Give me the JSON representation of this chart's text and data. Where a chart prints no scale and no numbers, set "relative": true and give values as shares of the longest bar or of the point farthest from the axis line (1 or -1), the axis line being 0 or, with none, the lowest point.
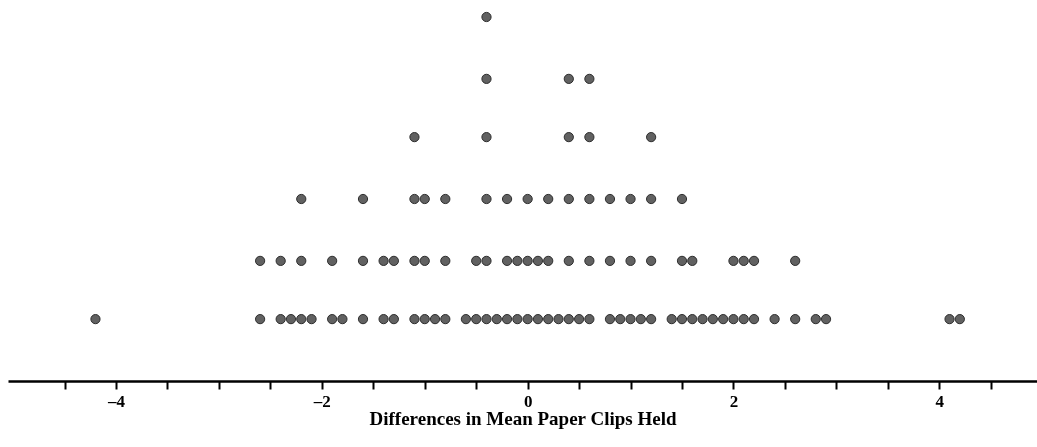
{
  "chart_data": {
    "type": "scatter",
    "relative": true,
    "xlabel": "Differences in Mean Paper Clips Held",
    "marker": "circle",
    "xlim": [
      -5.05,
      4.95
    ],
    "xticks": [
      {
        "value": -4.5,
        "label": null
      },
      {
        "value": -4,
        "label": "–4"
      },
      {
        "value": -3.5,
        "label": null
      },
      {
        "value": -3,
        "label": null
      },
      {
        "value": -2.5,
        "label": null
      },
      {
        "value": -2,
        "label": "–2"
      },
      {
        "value": -1.5,
        "label": null
      },
      {
        "value": -1,
        "label": null
      },
      {
        "value": -0.5,
        "label": null
      },
      0,
      {
        "value": 0.5,
        "label": null
      },
      {
        "value": 1,
        "label": null
      },
      {
        "value": 1.5,
        "label": null
      },
      2,
      {
        "value": 2.5,
        "label": null
      },
      {
        "value": 3,
        "label": null
      },
      {
        "value": 3.5,
        "label": null
      },
      4,
      {
        "value": 4.5,
        "label": null
      }
    ],
    "series": [
      {
        "color": "#616161",
        "x": [
          -4.2,
          -2.6,
          -2.4,
          -2.3,
          -2.2,
          -2.1,
          -1.9,
          -1.8,
          -1.6,
          -1.4,
          -1.3,
          -1.1,
          -1.0,
          -0.9,
          -0.8,
          -0.6,
          -0.5,
          -0.4,
          -0.3,
          -0.2,
          -0.1,
          0,
          0.1,
          0.2,
          0.3,
          0.4,
          0.5,
          0.6,
          0.8,
          0.9,
          1.0,
          1.1,
          1.2,
          1.4,
          1.5,
          1.6,
          1.7,
          1.8,
          1.9,
          2.0,
          2.1,
          2.2,
          2.4,
          2.6,
          2.8,
          2.9,
          4.1,
          4.2,
          -2.6,
          -2.4,
          -2.2,
          -1.9,
          -1.6,
          -1.4,
          -1.3,
          -1.1,
          -1.0,
          -0.8,
          -0.5,
          -0.4,
          -0.2,
          -0.1,
          0,
          0.1,
          0.2,
          0.4,
          0.6,
          0.8,
          1.0,
          1.2,
          1.5,
          1.6,
          2.0,
          2.1,
          2.2,
          2.6,
          -2.2,
          -1.6,
          -1.1,
          -1.0,
          -0.8,
          -0.4,
          -0.2,
          0,
          0.2,
          0.4,
          0.6,
          0.8,
          1.0,
          1.2,
          1.5,
          -1.1,
          -0.4,
          0.4,
          0.6,
          1.2,
          -0.4,
          0.4,
          0.6,
          -0.4
        ],
        "values": [
          0.17,
          0.17,
          0.17,
          0.17,
          0.17,
          0.17,
          0.17,
          0.17,
          0.17,
          0.17,
          0.17,
          0.17,
          0.17,
          0.17,
          0.17,
          0.17,
          0.17,
          0.17,
          0.17,
          0.17,
          0.17,
          0.17,
          0.17,
          0.17,
          0.17,
          0.17,
          0.17,
          0.17,
          0.17,
          0.17,
          0.17,
          0.17,
          0.17,
          0.17,
          0.17,
          0.17,
          0.17,
          0.17,
          0.17,
          0.17,
          0.17,
          0.17,
          0.17,
          0.17,
          0.17,
          0.17,
          0.17,
          0.17,
          0.33,
          0.33,
          0.33,
          0.33,
          0.33,
          0.33,
          0.33,
          0.33,
          0.33,
          0.33,
          0.33,
          0.33,
          0.33,
          0.33,
          0.33,
          0.33,
          0.33,
          0.33,
          0.33,
          0.33,
          0.33,
          0.33,
          0.33,
          0.33,
          0.33,
          0.33,
          0.33,
          0.33,
          0.5,
          0.5,
          0.5,
          0.5,
          0.5,
          0.5,
          0.5,
          0.5,
          0.5,
          0.5,
          0.5,
          0.5,
          0.5,
          0.5,
          0.5,
          0.67,
          0.67,
          0.67,
          0.67,
          0.67,
          0.83,
          0.83,
          0.83,
          1
        ]
      }
    ]
  }
}
